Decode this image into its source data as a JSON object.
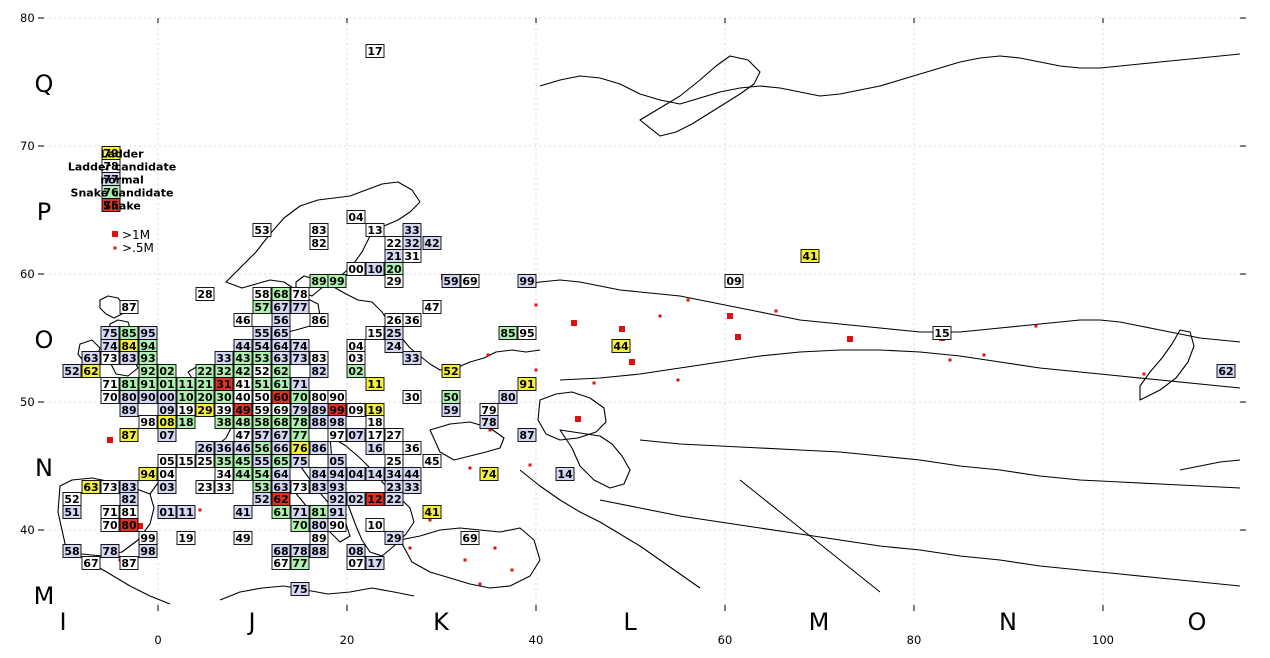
{
  "axis": {
    "y_ticks": [
      "80",
      "70",
      "60",
      "50",
      "40"
    ],
    "x_ticks": [
      "0",
      "20",
      "40",
      "60",
      "80",
      "100"
    ]
  },
  "bands": {
    "lat": [
      "Q",
      "P",
      "O",
      "N",
      "M"
    ],
    "lon": [
      "I",
      "J",
      "K",
      "L",
      "M",
      "N",
      "O"
    ]
  },
  "colors": {
    "ladder": "#f5f03c",
    "ladder_candidate": "#ffffff",
    "normal": "#d4d8f5",
    "snake_candidate": "#aef0ae",
    "snake": "#e03020",
    "city": "#e01010"
  },
  "legend": {
    "items": [
      {
        "code": "79",
        "label": "Ladder",
        "kind": "ladder"
      },
      {
        "code": "78",
        "label": "Ladder candidate",
        "kind": "ladder_candidate"
      },
      {
        "code": "77",
        "label": "normal",
        "kind": "normal"
      },
      {
        "code": "76",
        "label": "Snake candidate",
        "kind": "snake_candidate"
      },
      {
        "code": "75",
        "label": "Snake",
        "kind": "snake"
      }
    ],
    "size_big": ">1M",
    "size_small": ">.5M"
  },
  "grid_cells": [
    {
      "c": "17",
      "k": "ladder_candidate"
    },
    {
      "c": "04",
      "k": "ladder_candidate"
    },
    {
      "c": "53",
      "k": "ladder_candidate"
    },
    {
      "c": "83",
      "k": "ladder_candidate"
    },
    {
      "c": "13",
      "k": "ladder_candidate"
    },
    {
      "c": "33",
      "k": "normal"
    },
    {
      "c": "82",
      "k": "ladder_candidate"
    },
    {
      "c": "22",
      "k": "ladder_candidate"
    },
    {
      "c": "32",
      "k": "normal"
    },
    {
      "c": "42",
      "k": "normal"
    },
    {
      "c": "21",
      "k": "normal"
    },
    {
      "c": "31",
      "k": "ladder_candidate"
    },
    {
      "c": "00",
      "k": "ladder_candidate"
    },
    {
      "c": "10",
      "k": "normal"
    },
    {
      "c": "20",
      "k": "snake_candidate"
    },
    {
      "c": "41",
      "k": "ladder"
    },
    {
      "c": "09",
      "k": "ladder_candidate"
    },
    {
      "c": "59",
      "k": "normal"
    },
    {
      "c": "69",
      "k": "ladder_candidate"
    },
    {
      "c": "99",
      "k": "normal"
    },
    {
      "c": "28",
      "k": "ladder_candidate"
    },
    {
      "c": "58",
      "k": "ladder_candidate"
    },
    {
      "c": "68",
      "k": "snake_candidate"
    },
    {
      "c": "78",
      "k": "ladder_candidate"
    },
    {
      "c": "89",
      "k": "snake_candidate"
    },
    {
      "c": "99",
      "k": "snake_candidate"
    },
    {
      "c": "29",
      "k": "ladder_candidate"
    },
    {
      "c": "87",
      "k": "ladder_candidate"
    },
    {
      "c": "57",
      "k": "snake_candidate"
    },
    {
      "c": "67",
      "k": "normal"
    },
    {
      "c": "77",
      "k": "normal"
    },
    {
      "c": "47",
      "k": "ladder_candidate"
    },
    {
      "c": "46",
      "k": "ladder_candidate"
    },
    {
      "c": "56",
      "k": "normal"
    },
    {
      "c": "86",
      "k": "ladder_candidate"
    },
    {
      "c": "26",
      "k": "ladder_candidate"
    },
    {
      "c": "36",
      "k": "ladder_candidate"
    },
    {
      "c": "75",
      "k": "normal"
    },
    {
      "c": "85",
      "k": "snake_candidate"
    },
    {
      "c": "95",
      "k": "normal"
    },
    {
      "c": "55",
      "k": "normal"
    },
    {
      "c": "65",
      "k": "normal"
    },
    {
      "c": "15",
      "k": "ladder_candidate"
    },
    {
      "c": "25",
      "k": "normal"
    },
    {
      "c": "85",
      "k": "snake_candidate"
    },
    {
      "c": "95",
      "k": "ladder_candidate"
    },
    {
      "c": "15",
      "k": "ladder_candidate"
    },
    {
      "c": "74",
      "k": "normal"
    },
    {
      "c": "84",
      "k": "ladder"
    },
    {
      "c": "94",
      "k": "snake_candidate"
    },
    {
      "c": "44",
      "k": "normal"
    },
    {
      "c": "54",
      "k": "normal"
    },
    {
      "c": "64",
      "k": "normal"
    },
    {
      "c": "74",
      "k": "normal"
    },
    {
      "c": "04",
      "k": "ladder_candidate"
    },
    {
      "c": "24",
      "k": "normal"
    },
    {
      "c": "44",
      "k": "ladder"
    },
    {
      "c": "63",
      "k": "normal"
    },
    {
      "c": "73",
      "k": "ladder_candidate"
    },
    {
      "c": "83",
      "k": "normal"
    },
    {
      "c": "93",
      "k": "snake_candidate"
    },
    {
      "c": "33",
      "k": "normal"
    },
    {
      "c": "43",
      "k": "snake_candidate"
    },
    {
      "c": "53",
      "k": "snake_candidate"
    },
    {
      "c": "63",
      "k": "normal"
    },
    {
      "c": "73",
      "k": "normal"
    },
    {
      "c": "83",
      "k": "ladder_candidate"
    },
    {
      "c": "03",
      "k": "ladder_candidate"
    },
    {
      "c": "33",
      "k": "normal"
    },
    {
      "c": "52",
      "k": "normal"
    },
    {
      "c": "62",
      "k": "ladder"
    },
    {
      "c": "92",
      "k": "snake_candidate"
    },
    {
      "c": "02",
      "k": "snake_candidate"
    },
    {
      "c": "22",
      "k": "snake_candidate"
    },
    {
      "c": "32",
      "k": "snake_candidate"
    },
    {
      "c": "42",
      "k": "snake_candidate"
    },
    {
      "c": "52",
      "k": "ladder_candidate"
    },
    {
      "c": "62",
      "k": "snake_candidate"
    },
    {
      "c": "82",
      "k": "normal"
    },
    {
      "c": "02",
      "k": "snake_candidate"
    },
    {
      "c": "52",
      "k": "ladder"
    },
    {
      "c": "62",
      "k": "normal"
    },
    {
      "c": "71",
      "k": "ladder_candidate"
    },
    {
      "c": "81",
      "k": "snake_candidate"
    },
    {
      "c": "91",
      "k": "snake_candidate"
    },
    {
      "c": "01",
      "k": "snake_candidate"
    },
    {
      "c": "11",
      "k": "snake_candidate"
    },
    {
      "c": "21",
      "k": "snake_candidate"
    },
    {
      "c": "31",
      "k": "snake"
    },
    {
      "c": "41",
      "k": "ladder_candidate"
    },
    {
      "c": "51",
      "k": "snake_candidate"
    },
    {
      "c": "61",
      "k": "snake_candidate"
    },
    {
      "c": "71",
      "k": "normal"
    },
    {
      "c": "11",
      "k": "ladder"
    },
    {
      "c": "91",
      "k": "ladder"
    },
    {
      "c": "70",
      "k": "ladder_candidate"
    },
    {
      "c": "80",
      "k": "normal"
    },
    {
      "c": "90",
      "k": "normal"
    },
    {
      "c": "00",
      "k": "normal"
    },
    {
      "c": "10",
      "k": "snake_candidate"
    },
    {
      "c": "20",
      "k": "snake_candidate"
    },
    {
      "c": "30",
      "k": "snake_candidate"
    },
    {
      "c": "40",
      "k": "ladder_candidate"
    },
    {
      "c": "50",
      "k": "ladder_candidate"
    },
    {
      "c": "60",
      "k": "snake"
    },
    {
      "c": "70",
      "k": "snake_candidate"
    },
    {
      "c": "80",
      "k": "ladder_candidate"
    },
    {
      "c": "90",
      "k": "ladder_candidate"
    },
    {
      "c": "30",
      "k": "ladder_candidate"
    },
    {
      "c": "50",
      "k": "snake_candidate"
    },
    {
      "c": "80",
      "k": "normal"
    },
    {
      "c": "89",
      "k": "normal"
    },
    {
      "c": "09",
      "k": "normal"
    },
    {
      "c": "19",
      "k": "ladder_candidate"
    },
    {
      "c": "29",
      "k": "ladder"
    },
    {
      "c": "39",
      "k": "ladder_candidate"
    },
    {
      "c": "49",
      "k": "snake"
    },
    {
      "c": "59",
      "k": "ladder_candidate"
    },
    {
      "c": "69",
      "k": "ladder_candidate"
    },
    {
      "c": "79",
      "k": "normal"
    },
    {
      "c": "89",
      "k": "normal"
    },
    {
      "c": "99",
      "k": "snake"
    },
    {
      "c": "09",
      "k": "ladder_candidate"
    },
    {
      "c": "19",
      "k": "ladder"
    },
    {
      "c": "59",
      "k": "normal"
    },
    {
      "c": "79",
      "k": "ladder_candidate"
    },
    {
      "c": "98",
      "k": "ladder_candidate"
    },
    {
      "c": "08",
      "k": "ladder"
    },
    {
      "c": "18",
      "k": "snake_candidate"
    },
    {
      "c": "38",
      "k": "snake_candidate"
    },
    {
      "c": "48",
      "k": "snake_candidate"
    },
    {
      "c": "58",
      "k": "snake_candidate"
    },
    {
      "c": "68",
      "k": "snake_candidate"
    },
    {
      "c": "78",
      "k": "snake_candidate"
    },
    {
      "c": "88",
      "k": "normal"
    },
    {
      "c": "98",
      "k": "normal"
    },
    {
      "c": "18",
      "k": "ladder_candidate"
    },
    {
      "c": "78",
      "k": "normal"
    },
    {
      "c": "87",
      "k": "ladder"
    },
    {
      "c": "07",
      "k": "normal"
    },
    {
      "c": "47",
      "k": "ladder_candidate"
    },
    {
      "c": "57",
      "k": "normal"
    },
    {
      "c": "67",
      "k": "normal"
    },
    {
      "c": "77",
      "k": "snake_candidate"
    },
    {
      "c": "97",
      "k": "ladder_candidate"
    },
    {
      "c": "07",
      "k": "normal"
    },
    {
      "c": "17",
      "k": "ladder_candidate"
    },
    {
      "c": "27",
      "k": "ladder_candidate"
    },
    {
      "c": "87",
      "k": "normal"
    },
    {
      "c": "26",
      "k": "normal"
    },
    {
      "c": "36",
      "k": "normal"
    },
    {
      "c": "46",
      "k": "normal"
    },
    {
      "c": "56",
      "k": "snake_candidate"
    },
    {
      "c": "66",
      "k": "normal"
    },
    {
      "c": "76",
      "k": "ladder"
    },
    {
      "c": "86",
      "k": "normal"
    },
    {
      "c": "16",
      "k": "normal"
    },
    {
      "c": "36",
      "k": "ladder_candidate"
    },
    {
      "c": "05",
      "k": "ladder_candidate"
    },
    {
      "c": "15",
      "k": "ladder_candidate"
    },
    {
      "c": "25",
      "k": "ladder_candidate"
    },
    {
      "c": "35",
      "k": "snake_candidate"
    },
    {
      "c": "45",
      "k": "snake_candidate"
    },
    {
      "c": "55",
      "k": "normal"
    },
    {
      "c": "65",
      "k": "snake_candidate"
    },
    {
      "c": "75",
      "k": "normal"
    },
    {
      "c": "05",
      "k": "normal"
    },
    {
      "c": "25",
      "k": "ladder_candidate"
    },
    {
      "c": "45",
      "k": "ladder_candidate"
    },
    {
      "c": "94",
      "k": "ladder"
    },
    {
      "c": "04",
      "k": "ladder_candidate"
    },
    {
      "c": "34",
      "k": "ladder_candidate"
    },
    {
      "c": "44",
      "k": "snake_candidate"
    },
    {
      "c": "54",
      "k": "snake_candidate"
    },
    {
      "c": "64",
      "k": "normal"
    },
    {
      "c": "84",
      "k": "normal"
    },
    {
      "c": "94",
      "k": "normal"
    },
    {
      "c": "04",
      "k": "normal"
    },
    {
      "c": "14",
      "k": "normal"
    },
    {
      "c": "34",
      "k": "normal"
    },
    {
      "c": "44",
      "k": "normal"
    },
    {
      "c": "74",
      "k": "ladder"
    },
    {
      "c": "14",
      "k": "normal"
    },
    {
      "c": "63",
      "k": "ladder"
    },
    {
      "c": "73",
      "k": "ladder_candidate"
    },
    {
      "c": "83",
      "k": "normal"
    },
    {
      "c": "03",
      "k": "normal"
    },
    {
      "c": "23",
      "k": "normal"
    },
    {
      "c": "33",
      "k": "normal"
    },
    {
      "c": "53",
      "k": "snake_candidate"
    },
    {
      "c": "63",
      "k": "normal"
    },
    {
      "c": "73",
      "k": "ladder_candidate"
    },
    {
      "c": "83",
      "k": "normal"
    },
    {
      "c": "93",
      "k": "normal"
    },
    {
      "c": "23",
      "k": "ladder_candidate"
    },
    {
      "c": "33",
      "k": "ladder_candidate"
    },
    {
      "c": "52",
      "k": "ladder_candidate"
    },
    {
      "c": "82",
      "k": "normal"
    },
    {
      "c": "52",
      "k": "normal"
    },
    {
      "c": "62",
      "k": "snake"
    },
    {
      "c": "92",
      "k": "normal"
    },
    {
      "c": "02",
      "k": "normal"
    },
    {
      "c": "12",
      "k": "snake"
    },
    {
      "c": "22",
      "k": "normal"
    },
    {
      "c": "51",
      "k": "normal"
    },
    {
      "c": "71",
      "k": "ladder_candidate"
    },
    {
      "c": "81",
      "k": "ladder_candidate"
    },
    {
      "c": "01",
      "k": "normal"
    },
    {
      "c": "11",
      "k": "normal"
    },
    {
      "c": "41",
      "k": "normal"
    },
    {
      "c": "61",
      "k": "snake_candidate"
    },
    {
      "c": "71",
      "k": "normal"
    },
    {
      "c": "81",
      "k": "snake_candidate"
    },
    {
      "c": "91",
      "k": "normal"
    },
    {
      "c": "41",
      "k": "ladder"
    },
    {
      "c": "70",
      "k": "ladder_candidate"
    },
    {
      "c": "80",
      "k": "snake"
    },
    {
      "c": "70",
      "k": "snake_candidate"
    },
    {
      "c": "80",
      "k": "normal"
    },
    {
      "c": "90",
      "k": "ladder_candidate"
    },
    {
      "c": "10",
      "k": "ladder_candidate"
    },
    {
      "c": "99",
      "k": "ladder_candidate"
    },
    {
      "c": "19",
      "k": "ladder_candidate"
    },
    {
      "c": "49",
      "k": "ladder_candidate"
    },
    {
      "c": "89",
      "k": "ladder_candidate"
    },
    {
      "c": "29",
      "k": "normal"
    },
    {
      "c": "69",
      "k": "ladder_candidate"
    },
    {
      "c": "58",
      "k": "normal"
    },
    {
      "c": "78",
      "k": "normal"
    },
    {
      "c": "98",
      "k": "normal"
    },
    {
      "c": "68",
      "k": "normal"
    },
    {
      "c": "78",
      "k": "normal"
    },
    {
      "c": "88",
      "k": "normal"
    },
    {
      "c": "08",
      "k": "normal"
    },
    {
      "c": "67",
      "k": "ladder_candidate"
    },
    {
      "c": "87",
      "k": "ladder_candidate"
    },
    {
      "c": "67",
      "k": "ladder_candidate"
    },
    {
      "c": "77",
      "k": "snake_candidate"
    },
    {
      "c": "07",
      "k": "ladder_candidate"
    },
    {
      "c": "17",
      "k": "normal"
    },
    {
      "c": "75",
      "k": "normal"
    }
  ]
}
